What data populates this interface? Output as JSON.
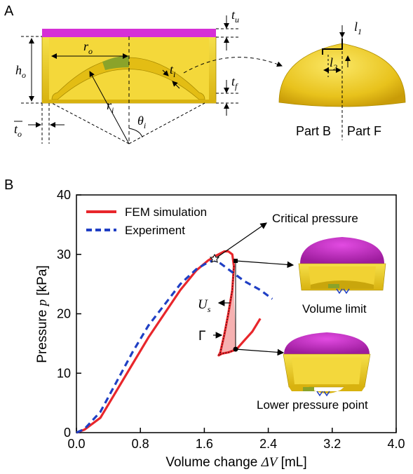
{
  "panels": {
    "a": {
      "letter": "A"
    },
    "b": {
      "letter": "B"
    }
  },
  "dims": {
    "tu": "t",
    "tu_sub": "u",
    "ro": "r",
    "ro_sub": "o",
    "ti": "t",
    "ti_sub": "i",
    "ho": "h",
    "ho_sub": "o",
    "ri": "r",
    "ri_sub": "i",
    "tf": "t",
    "tf_sub": "f",
    "theta": "θ",
    "theta_sub": "i",
    "to": "t",
    "to_sub": "o",
    "l1": "l",
    "l1_sub": "1",
    "l2": "l",
    "l2_sub": "2"
  },
  "parts": {
    "b": "Part B",
    "f": "Part F"
  },
  "chart_data": {
    "type": "line",
    "xlabel_pre": "Volume change ",
    "xlabel_sym": "ΔV",
    "xlabel_post": " [mL]",
    "ylabel_pre": "Pressure ",
    "ylabel_sym": "p",
    "ylabel_post": " [kPa]",
    "xlim": [
      0,
      4.0
    ],
    "ylim": [
      0,
      40
    ],
    "xticks": [
      "0.0",
      "0.8",
      "1.6",
      "2.4",
      "3.2",
      "4.0"
    ],
    "yticks": [
      "0",
      "10",
      "20",
      "30",
      "40"
    ],
    "legend": [
      "FEM simulation",
      "Experiment"
    ],
    "series": [
      {
        "name": "FEM simulation",
        "color": "#e8262b",
        "style": "solid",
        "x": [
          0.0,
          0.1,
          0.3,
          0.5,
          0.7,
          0.9,
          1.1,
          1.3,
          1.5,
          1.65,
          1.75,
          1.85,
          1.9,
          1.95,
          1.97,
          1.95,
          1.9,
          1.85,
          1.8,
          1.78,
          1.82,
          1.9,
          2.0,
          2.1,
          2.2,
          2.3
        ],
        "y": [
          0.0,
          0.5,
          2.5,
          7.0,
          11.5,
          16.0,
          20.0,
          24.0,
          27.3,
          29.0,
          29.8,
          30.5,
          30.5,
          30.0,
          28.0,
          24.0,
          20.0,
          16.5,
          13.5,
          13.0,
          13.3,
          13.5,
          14.0,
          15.5,
          17.0,
          19.2
        ]
      },
      {
        "name": "Experiment",
        "color": "#1f3fc4",
        "style": "dashed",
        "x": [
          0.0,
          0.1,
          0.3,
          0.5,
          0.7,
          0.9,
          1.1,
          1.3,
          1.5,
          1.65,
          1.72,
          1.8,
          1.95,
          2.1,
          2.3,
          2.45
        ],
        "y": [
          0.0,
          0.6,
          3.5,
          8.5,
          13.5,
          18.0,
          21.5,
          25.0,
          27.5,
          28.7,
          29.0,
          28.5,
          27.0,
          25.5,
          24.0,
          22.5
        ]
      }
    ],
    "annotations": {
      "critical": "Critical pressure",
      "volume_limit": "Volume limit",
      "lower": "Lower pressure point",
      "us": "U",
      "us_sub": "s",
      "gamma": "Γ"
    }
  }
}
